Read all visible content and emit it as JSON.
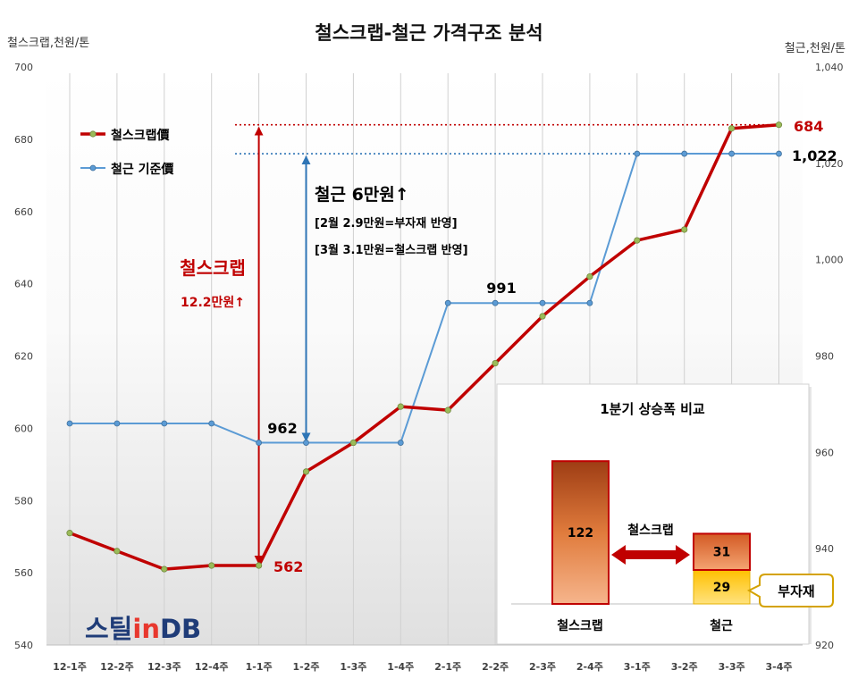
{
  "chart_data": [
    {
      "type": "line",
      "title": "철스크랩-철근 가격구조 분석",
      "categories": [
        "12-1주",
        "12-2주",
        "12-3주",
        "12-4주",
        "1-1주",
        "1-2주",
        "1-3주",
        "1-4주",
        "2-1주",
        "2-2주",
        "2-3주",
        "2-4주",
        "3-1주",
        "3-2주",
        "3-3주",
        "3-4주"
      ],
      "y_left": {
        "label": "철스크랩,천원/톤",
        "range": [
          540,
          700
        ],
        "ticks": [
          540,
          560,
          580,
          600,
          620,
          640,
          660,
          680,
          700
        ],
        "tick_labels": [
          "540",
          "560",
          "580",
          "600",
          "620",
          "640",
          "660",
          "680",
          "700"
        ]
      },
      "y_right": {
        "label": "철근,천원/톤",
        "range": [
          920,
          1040
        ],
        "ticks": [
          920,
          940,
          960,
          980,
          1000,
          1020,
          1040
        ],
        "tick_labels": [
          "920",
          "940",
          "960",
          "980",
          "1,000",
          "1,020",
          "1,040"
        ]
      },
      "series": [
        {
          "name": "철스크랩價",
          "secondary_axis": false,
          "color": "#C00000",
          "marker_color": "#9BBB59",
          "values": [
            571,
            566,
            561,
            562,
            562,
            588,
            596,
            606,
            605,
            618,
            631,
            642,
            652,
            655,
            683,
            684
          ]
        },
        {
          "name": "철근 기준價",
          "secondary_axis": true,
          "color": "#5B9BD5",
          "marker_color": "#5B9BD5",
          "values": [
            966,
            966,
            966,
            966,
            962,
            962,
            962,
            962,
            991,
            991,
            991,
            991,
            1022,
            1022,
            1022,
            1022
          ]
        }
      ],
      "legend": "top-left",
      "grid": {
        "vertical": true,
        "horizontal": false
      },
      "data_labels": {
        "scrap_last": "684",
        "rebar_last": "1,022",
        "rebar_feb": "991",
        "rebar_jan": "962",
        "scrap_jan": "562"
      },
      "annotations": {
        "scrap_title": "철스크랩",
        "scrap_rise": "12.2만원↑",
        "rebar_title": "철근 6만원↑",
        "rebar_note_feb": "[2월 2.9만원=부자재 반영]",
        "rebar_note_mar": "[3월 3.1만원=철스크랩 반영]"
      }
    },
    {
      "type": "bar",
      "stacked": true,
      "title": "1분기 상승폭 비교",
      "categories": [
        "철스크랩",
        "철근"
      ],
      "series": [
        {
          "name": "부자재",
          "color": "#FFC000",
          "values": [
            0,
            29
          ]
        },
        {
          "name": "철스크랩",
          "color": "#E46C0A",
          "values": [
            122,
            31
          ]
        }
      ]
    }
  ],
  "logo": {
    "parts": [
      "스틸",
      "in",
      "DB"
    ]
  }
}
